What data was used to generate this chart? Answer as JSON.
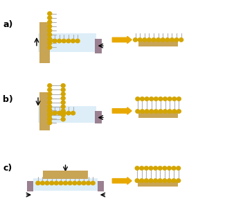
{
  "substrate_color": "#c8a455",
  "lipid_head_color": "#d4a500",
  "lipid_tail_color": "#b0b0b0",
  "barrier_color": "#9a8090",
  "arrow_color": "#e8a800",
  "water_color": "#ddeef8",
  "label_a": "a)",
  "label_b": "b)",
  "label_c": "c)",
  "fig_width": 3.51,
  "fig_height": 3.23,
  "dpi": 100
}
